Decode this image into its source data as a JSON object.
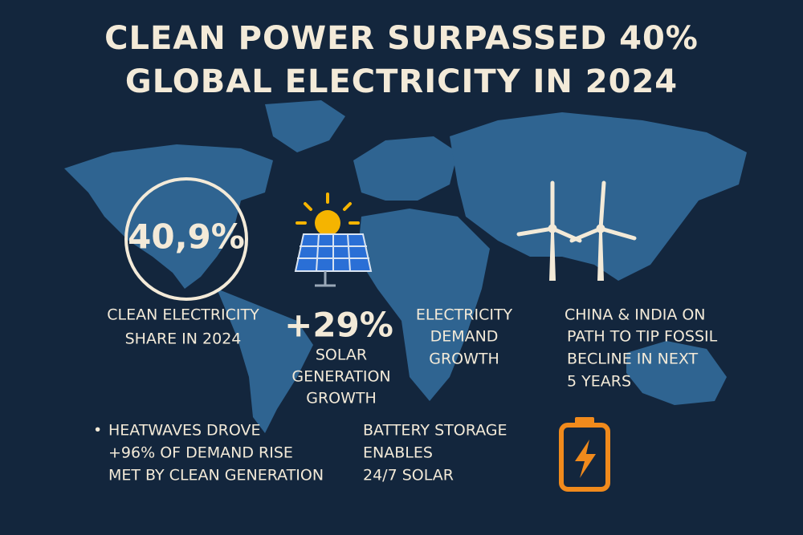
{
  "header": {
    "title": [
      "CLEAN POWER SURPASSED 40%",
      "GLOBAL ELECTRICITY IN 2024"
    ]
  },
  "share": {
    "value": "40,9%",
    "caption": [
      "CLEAN ELECTRICITY",
      "SHARE IN 2024"
    ]
  },
  "solar": {
    "value": "+29%",
    "caption": [
      "SOLAR",
      "GENERATION",
      "GROWTH"
    ]
  },
  "demand": {
    "caption": [
      "ELECTRICITY",
      "DEMAND",
      "GROWTH"
    ]
  },
  "china_india": {
    "caption": [
      "CHINA & INDIA ON",
      "PATH TO TIP FOSSIL",
      "BECLINE IN NEXT",
      "5 YEARS"
    ]
  },
  "heatwaves": {
    "bullet": "•",
    "caption": [
      "HEATWAVES DROVE",
      "+96% OF DEMAND RISE",
      "MET BY CLEAN GENERATION"
    ]
  },
  "battery": {
    "caption": [
      "BATTERY STORAGE",
      "ENABLES",
      "24/7 SOLAR"
    ]
  }
}
